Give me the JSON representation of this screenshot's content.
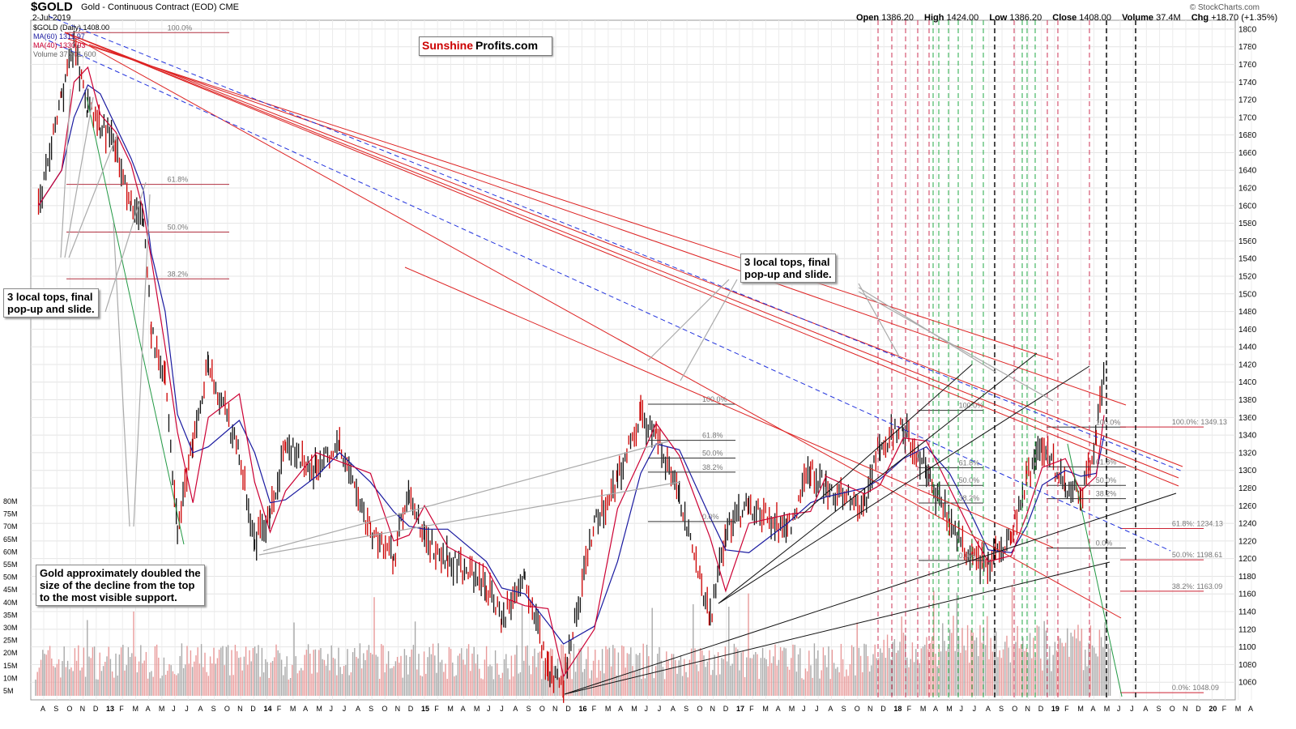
{
  "header": {
    "ticker": "$GOLD",
    "ticker_desc": "Gold - Continuous Contract (EOD)",
    "exchange": "CME",
    "date": "2-Jul-2019",
    "legend": [
      {
        "text": "$GOLD (Daily) 1408.00",
        "color": "#000000"
      },
      {
        "text": "MA(60) 1311.97",
        "color": "#1a1aa0"
      },
      {
        "text": "MA(40) 1330.93",
        "color": "#cc0033"
      },
      {
        "text": "Volume 37,401,600",
        "color": "#666666"
      }
    ],
    "ohlc": {
      "open_label": "Open",
      "open": "1386.20",
      "high_label": "High",
      "high": "1424.00",
      "low_label": "Low",
      "low": "1386.20",
      "close_label": "Close",
      "close": "1408.00",
      "volume_label": "Volume",
      "volume": "37.4M",
      "chg_label": "Chg",
      "chg": "+18.70 (+1.35%)"
    },
    "credit": "© StockCharts.com",
    "logo_a": "Sunshine",
    "logo_b": "Profits.com"
  },
  "annotations": [
    {
      "id": "note-left",
      "text": "3 local tops, final\npop-up and slide."
    },
    {
      "id": "note-mid",
      "text": "3 local tops, final\npop-up and slide."
    },
    {
      "id": "note-bottom",
      "text": "Gold approximately doubled the\nsize of the decline from the top\nto the most visible support."
    }
  ],
  "chart_data": {
    "type": "line",
    "title": "$GOLD Gold - Continuous Contract (EOD)",
    "ylim": [
      1040,
      1810
    ],
    "y_ticks": [
      1800,
      1780,
      1760,
      1740,
      1720,
      1700,
      1680,
      1660,
      1640,
      1620,
      1600,
      1580,
      1560,
      1540,
      1520,
      1500,
      1480,
      1460,
      1440,
      1420,
      1400,
      1380,
      1360,
      1340,
      1320,
      1300,
      1280,
      1260,
      1240,
      1220,
      1200,
      1180,
      1160,
      1140,
      1120,
      1100,
      1080,
      1060
    ],
    "volume_ticks": [
      "80M",
      "75M",
      "70M",
      "65M",
      "60M",
      "55M",
      "50M",
      "45M",
      "40M",
      "35M",
      "30M",
      "25M",
      "20M",
      "15M",
      "10M",
      "5M"
    ],
    "x_ticks": [
      "A",
      "S",
      "O",
      "N",
      "D",
      "13",
      "F",
      "M",
      "A",
      "M",
      "J",
      "J",
      "A",
      "S",
      "O",
      "N",
      "D",
      "14",
      "F",
      "M",
      "A",
      "M",
      "J",
      "J",
      "A",
      "S",
      "O",
      "N",
      "D",
      "15",
      "F",
      "M",
      "A",
      "M",
      "J",
      "J",
      "A",
      "S",
      "O",
      "N",
      "D",
      "16",
      "F",
      "M",
      "A",
      "M",
      "J",
      "J",
      "A",
      "S",
      "O",
      "N",
      "D",
      "17",
      "F",
      "M",
      "A",
      "M",
      "J",
      "J",
      "A",
      "S",
      "O",
      "N",
      "D",
      "18",
      "F",
      "M",
      "A",
      "M",
      "J",
      "J",
      "A",
      "S",
      "O",
      "N",
      "D",
      "19",
      "F",
      "M",
      "A",
      "M",
      "J",
      "J",
      "A",
      "S",
      "O",
      "N",
      "D",
      "20",
      "F",
      "M",
      "A"
    ],
    "x": [
      2012.6,
      2012.75,
      2012.83,
      2012.92,
      2013.0,
      2013.1,
      2013.2,
      2013.28,
      2013.33,
      2013.42,
      2013.5,
      2013.6,
      2013.7,
      2013.9,
      2014.0,
      2014.1,
      2014.2,
      2014.4,
      2014.55,
      2014.75,
      2014.9,
      2015.0,
      2015.1,
      2015.25,
      2015.5,
      2015.6,
      2015.75,
      2015.9,
      2016.0,
      2016.2,
      2016.35,
      2016.5,
      2016.6,
      2016.75,
      2016.95,
      2017.05,
      2017.2,
      2017.45,
      2017.6,
      2017.7,
      2017.95,
      2018.05,
      2018.2,
      2018.35,
      2018.5,
      2018.65,
      2018.75,
      2018.9,
      2019.0,
      2019.1,
      2019.25,
      2019.35,
      2019.45,
      2019.5
    ],
    "series": [
      {
        "values": [
          1600,
          1720,
          1780,
          1710,
          1690,
          1670,
          1600,
          1580,
          1460,
          1400,
          1230,
          1330,
          1420,
          1320,
          1220,
          1250,
          1330,
          1300,
          1330,
          1230,
          1200,
          1280,
          1220,
          1200,
          1170,
          1130,
          1180,
          1070,
          1060,
          1240,
          1290,
          1360,
          1340,
          1270,
          1130,
          1230,
          1260,
          1230,
          1300,
          1280,
          1260,
          1330,
          1350,
          1300,
          1240,
          1200,
          1190,
          1230,
          1290,
          1330,
          1280,
          1270,
          1340,
          1408
        ]
      }
    ],
    "fib_left": [
      {
        "label": "100.0%",
        "value": 1796
      },
      {
        "label": "61.8%",
        "value": 1624
      },
      {
        "label": "50.0%",
        "value": 1570
      },
      {
        "label": "38.2%",
        "value": 1517
      }
    ],
    "fib_mid": [
      {
        "label": "100.0%",
        "value": 1375
      },
      {
        "label": "61.8%",
        "value": 1334
      },
      {
        "label": "50.0%",
        "value": 1314
      },
      {
        "label": "38.2%",
        "value": 1298
      },
      {
        "label": "0.0%",
        "value": 1242
      }
    ],
    "fib_2018": [
      {
        "label": "100.0%",
        "value": 1368
      },
      {
        "label": "61.8%",
        "value": 1303
      },
      {
        "label": "50.0%",
        "value": 1283
      },
      {
        "label": "38.2%",
        "value": 1263
      },
      {
        "label": "0.0%",
        "value": 1198
      }
    ],
    "fib_2019": [
      {
        "label": "100.0%",
        "value": 1349
      },
      {
        "label": "61.8%",
        "value": 1304
      },
      {
        "label": "50.0%",
        "value": 1283
      },
      {
        "label": "38.2%",
        "value": 1268
      },
      {
        "label": "0.0%",
        "value": 1212
      }
    ],
    "fib_right": [
      {
        "label": "100.0%: 1349.13",
        "value": 1349.13
      },
      {
        "label": "61.8%: 1234.13",
        "value": 1234.13
      },
      {
        "label": "50.0%: 1198.61",
        "value": 1198.61
      },
      {
        "label": "38.2%: 1163.09",
        "value": 1163.09
      },
      {
        "label": "0.0%: 1048.09",
        "value": 1048.09
      }
    ],
    "grid": true
  }
}
